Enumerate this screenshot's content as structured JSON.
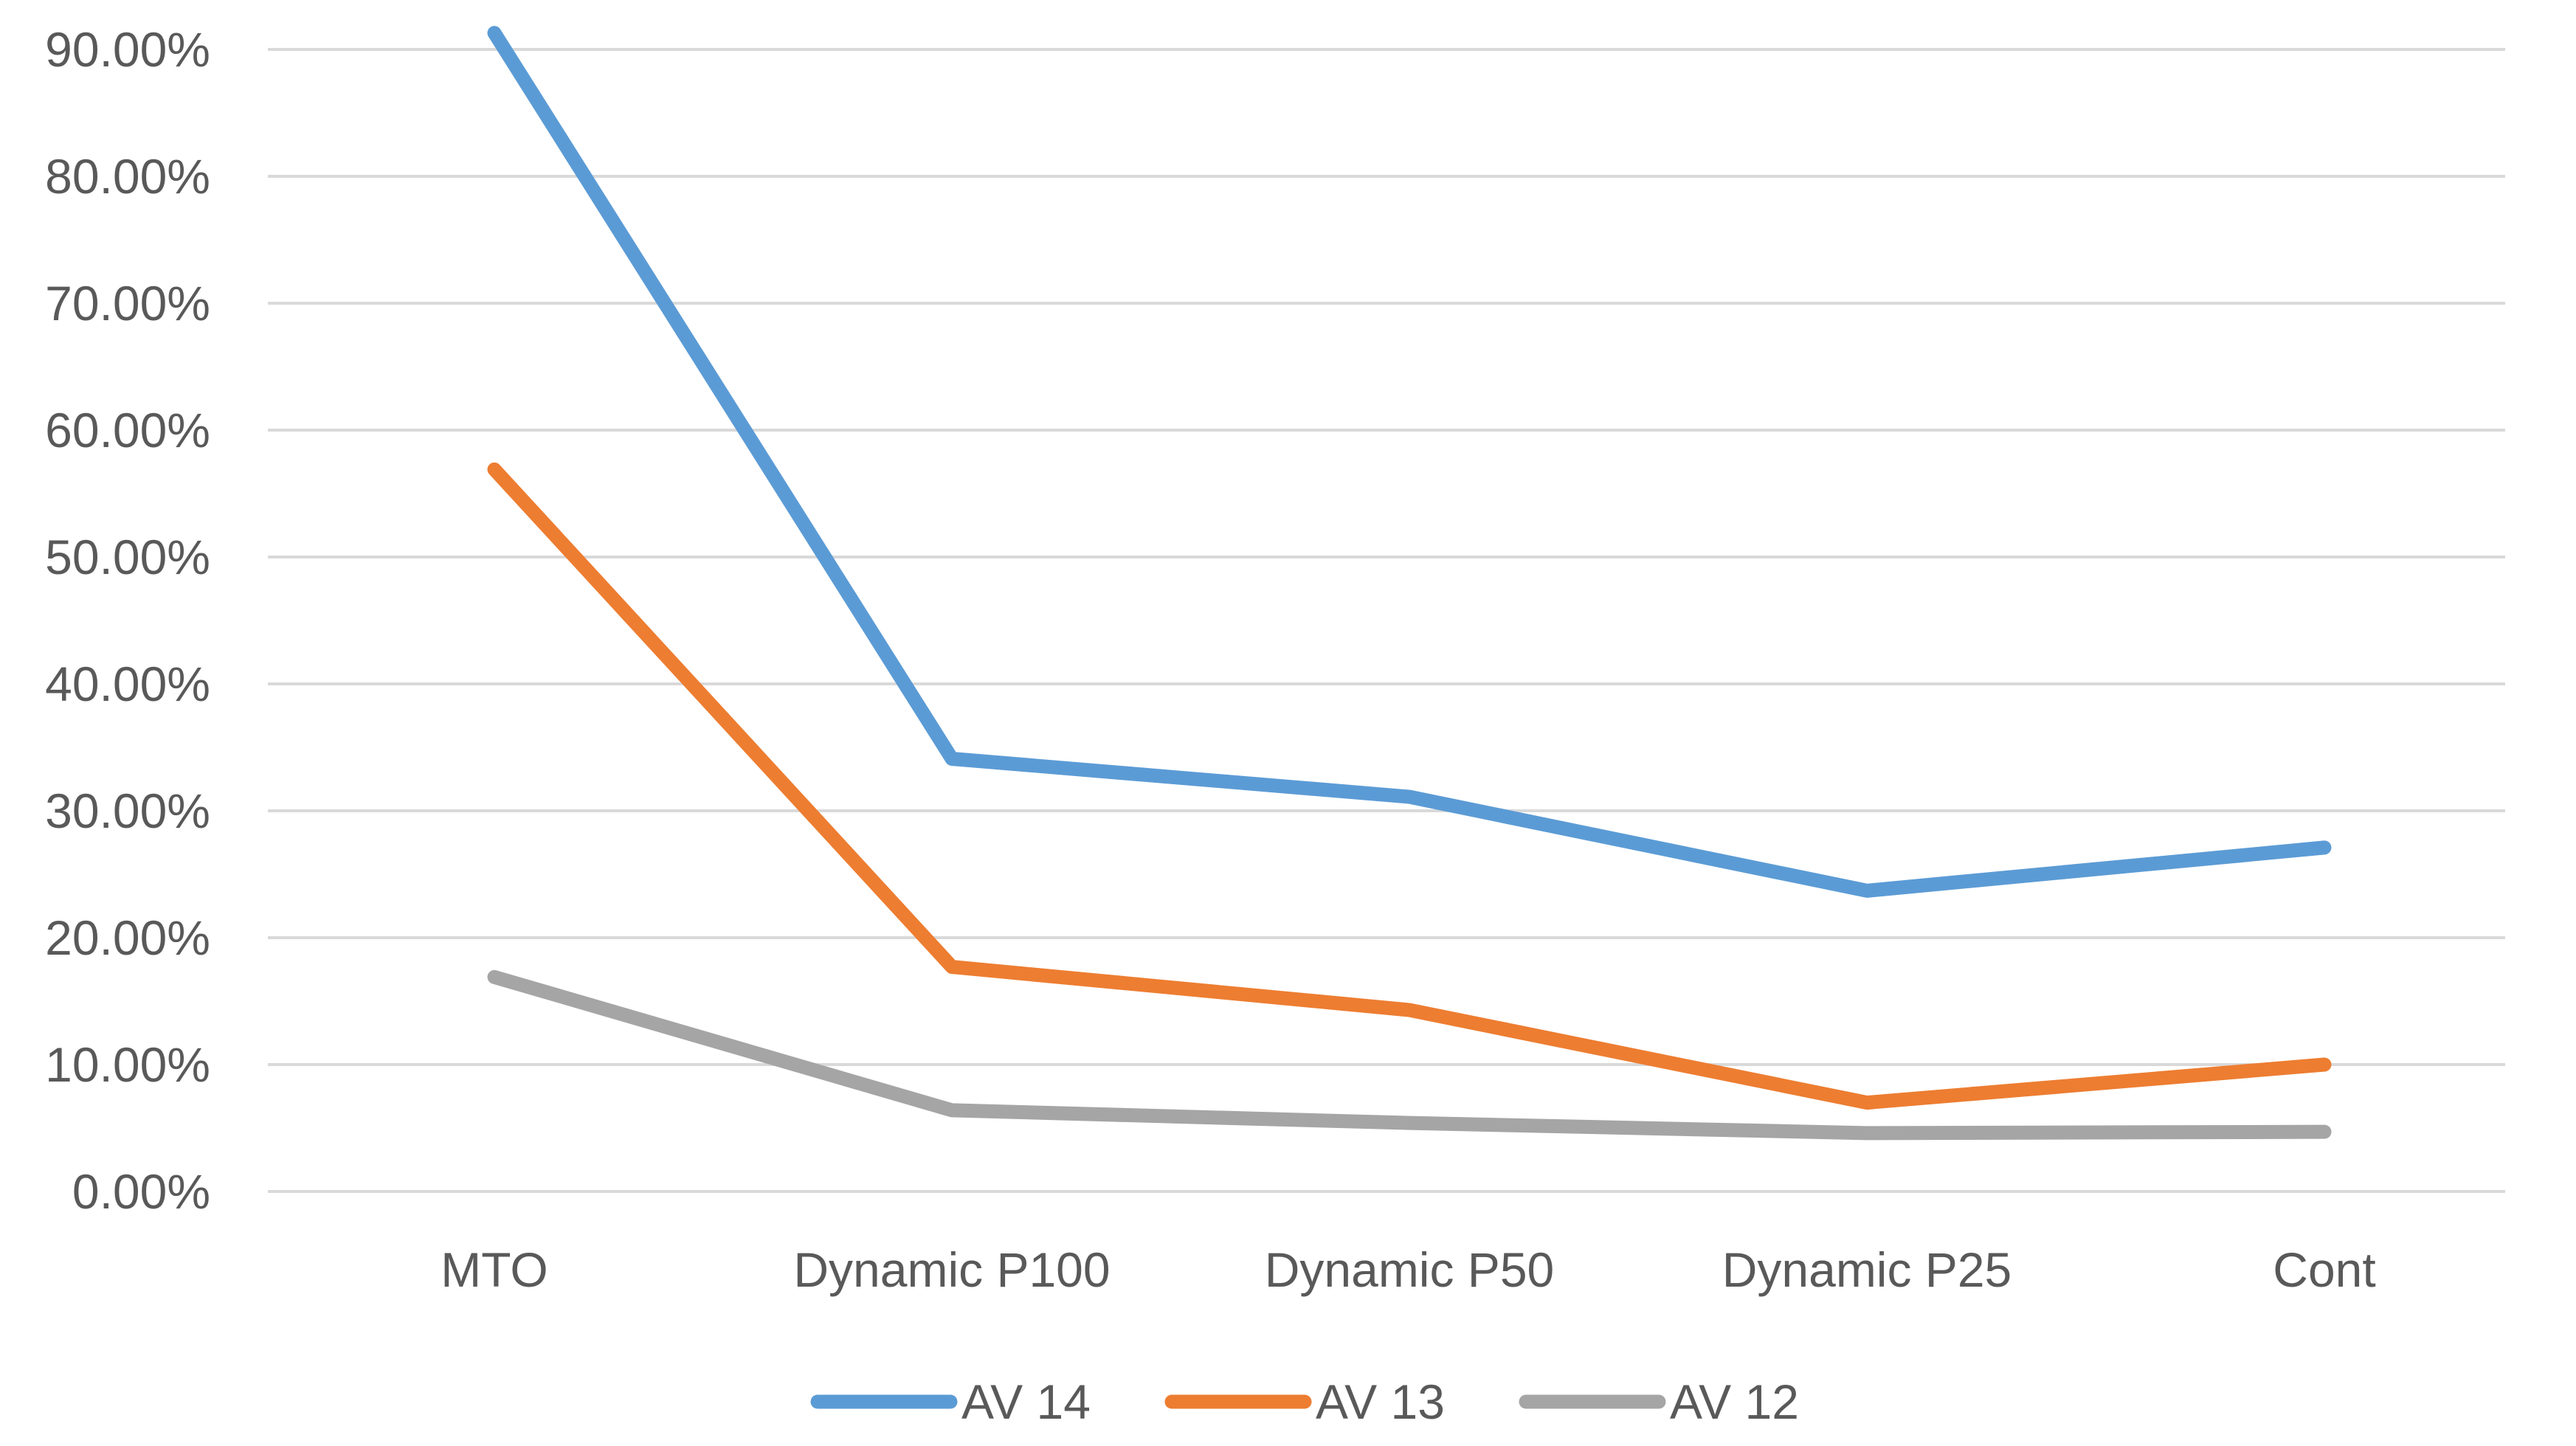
{
  "chart_data": {
    "type": "line",
    "title": "",
    "xlabel": "",
    "ylabel": "",
    "categories": [
      "MTO",
      "Dynamic P100",
      "Dynamic P50",
      "Dynamic P25",
      "Cont"
    ],
    "ylim": [
      0,
      0.9
    ],
    "yticks": [
      0,
      0.1,
      0.2,
      0.3,
      0.4,
      0.5,
      0.6,
      0.7,
      0.8,
      0.9
    ],
    "ytick_labels": [
      "0.00%",
      "10.00%",
      "20.00%",
      "30.00%",
      "40.00%",
      "50.00%",
      "60.00%",
      "70.00%",
      "80.00%",
      "90.00%"
    ],
    "grid": true,
    "legend_position": "bottom",
    "series": [
      {
        "name": "AV 14",
        "color": "#5b9bd5",
        "values": [
          0.913,
          0.341,
          0.311,
          0.237,
          0.271
        ]
      },
      {
        "name": "AV 13",
        "color": "#ed7d31",
        "values": [
          0.569,
          0.177,
          0.143,
          0.07,
          0.1
        ]
      },
      {
        "name": "AV 12",
        "color": "#a5a5a5",
        "values": [
          0.169,
          0.064,
          0.054,
          0.046,
          0.047
        ]
      }
    ]
  }
}
